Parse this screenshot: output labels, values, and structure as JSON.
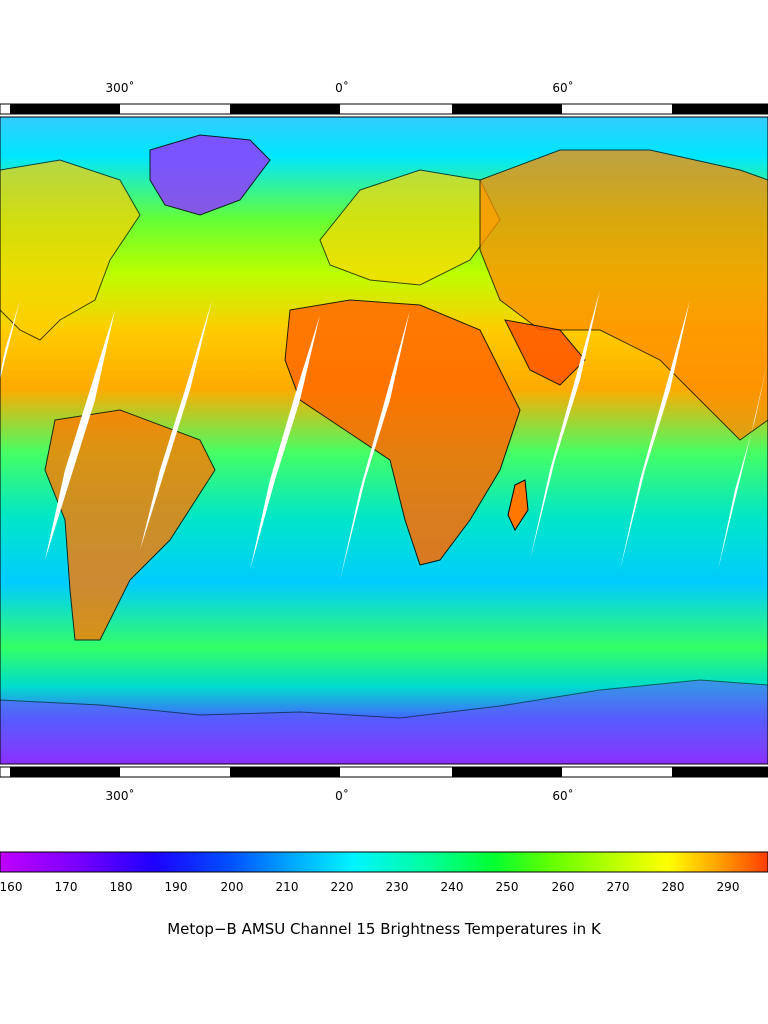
{
  "map": {
    "lon_labels_top": [
      "300˚",
      "0˚",
      "60˚"
    ],
    "lon_labels_bottom": [
      "300˚",
      "0˚",
      "60˚"
    ]
  },
  "colorbar": {
    "ticks": [
      "160",
      "170",
      "180",
      "190",
      "200",
      "210",
      "220",
      "230",
      "240",
      "250",
      "260",
      "270",
      "280",
      "290"
    ],
    "title": "Metop−B AMSU Channel 15 Brightness Temperatures in K",
    "colors": [
      "#b000ff",
      "#7a00ff",
      "#2a00ff",
      "#0044ff",
      "#0099ff",
      "#00eaff",
      "#00ffc0",
      "#00ff66",
      "#33ff00",
      "#99ff00",
      "#d4ff00",
      "#ffff00",
      "#ffb000",
      "#ff5a00"
    ]
  }
}
